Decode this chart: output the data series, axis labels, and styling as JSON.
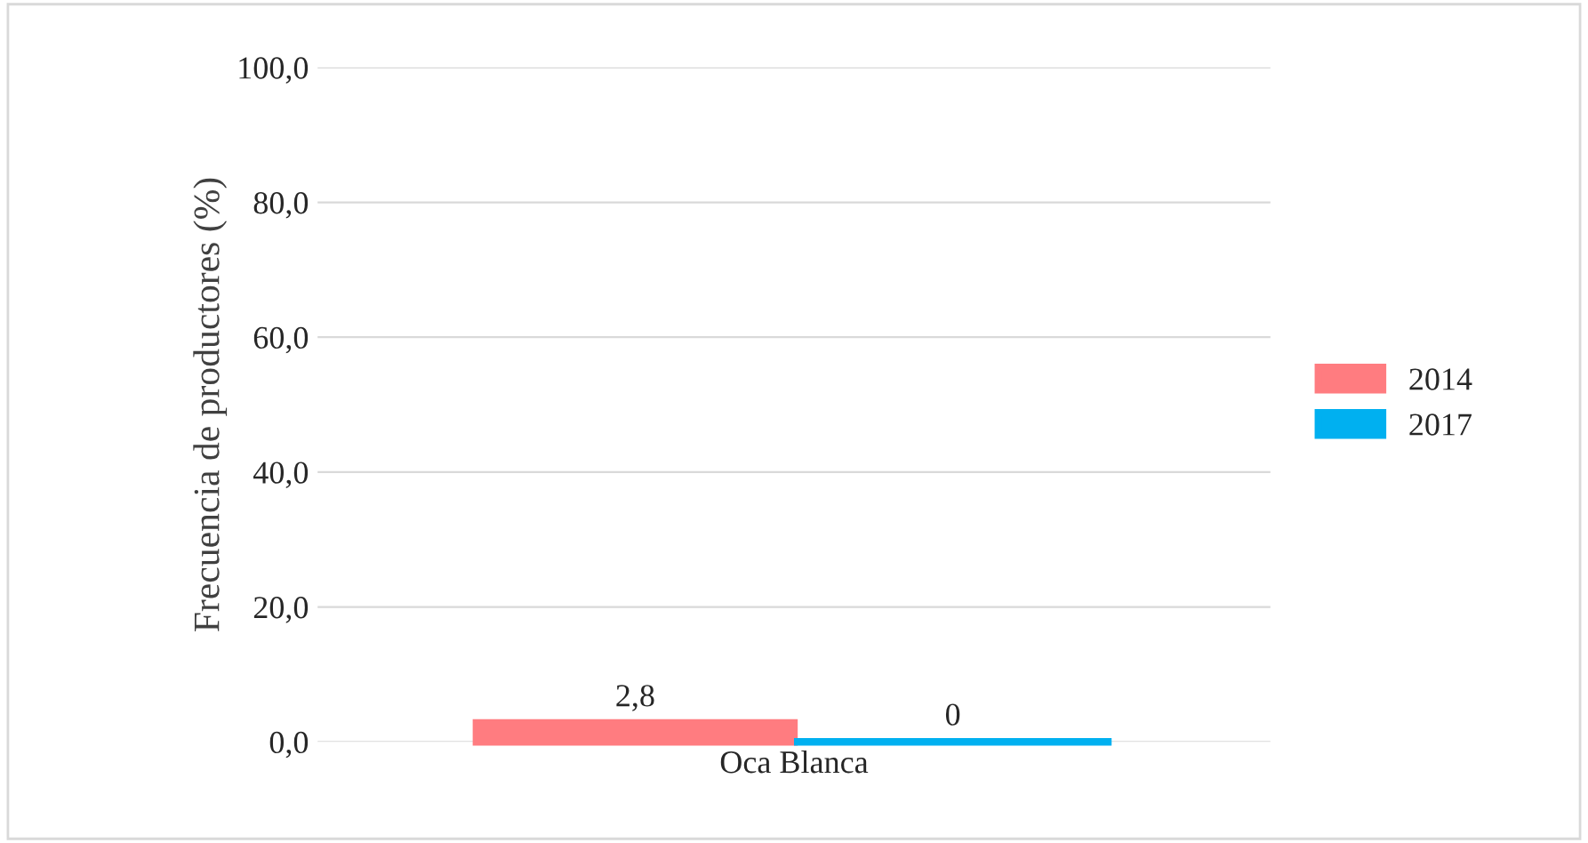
{
  "chart_data": {
    "type": "bar",
    "ylabel": "Frecuencia de productores (%)",
    "categories": [
      "Oca Blanca"
    ],
    "series": [
      {
        "name": "2014",
        "color": "#ff7c80",
        "values": [
          2.8
        ],
        "value_labels": [
          "2,8"
        ]
      },
      {
        "name": "2017",
        "color": "#00b0f0",
        "values": [
          0
        ],
        "value_labels": [
          "0"
        ]
      }
    ],
    "ylim": [
      0,
      100
    ],
    "yticks": [
      {
        "value": 0,
        "label": "0,0"
      },
      {
        "value": 20,
        "label": "20,0"
      },
      {
        "value": 40,
        "label": "40,0"
      },
      {
        "value": 60,
        "label": "60,0"
      },
      {
        "value": 80,
        "label": "80,0"
      },
      {
        "value": 100,
        "label": "100,0"
      }
    ],
    "grid": "y",
    "legend": "right"
  }
}
